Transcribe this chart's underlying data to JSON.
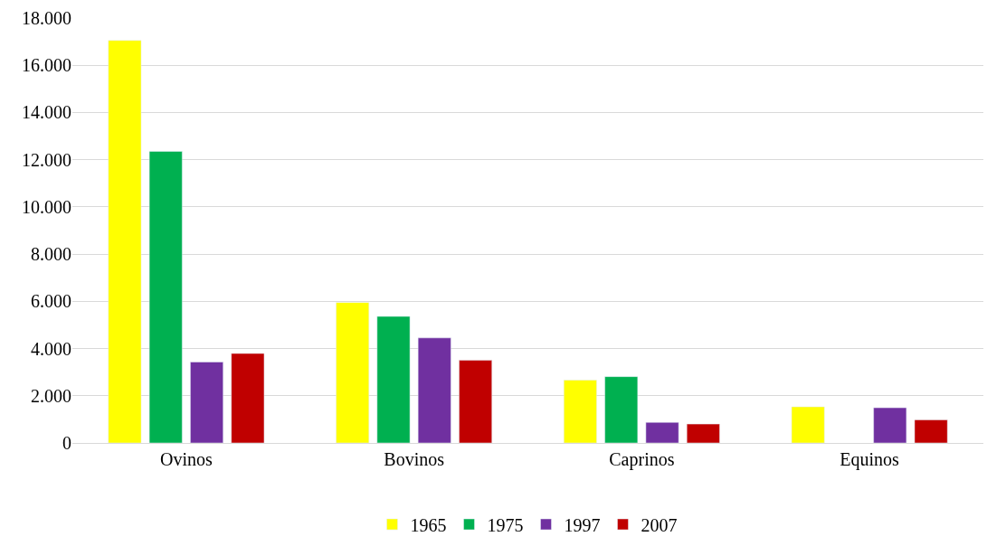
{
  "chart_data": {
    "type": "bar",
    "categories": [
      "Ovinos",
      "Bovinos",
      "Caprinos",
      "Equinos"
    ],
    "series": [
      {
        "name": "1965",
        "color": "#ffff00",
        "values": [
          17050,
          5950,
          2660,
          1530
        ]
      },
      {
        "name": "1975",
        "color": "#00b050",
        "values": [
          12350,
          5360,
          2810,
          null
        ]
      },
      {
        "name": "1997",
        "color": "#7030a0",
        "values": [
          3430,
          4450,
          870,
          1490
        ]
      },
      {
        "name": "2007",
        "color": "#c00000",
        "values": [
          3790,
          3500,
          800,
          980
        ]
      }
    ],
    "ylim": [
      0,
      18000
    ],
    "yticks": [
      {
        "value": 0,
        "label": "0"
      },
      {
        "value": 2000,
        "label": "2.000"
      },
      {
        "value": 4000,
        "label": "4.000"
      },
      {
        "value": 6000,
        "label": "6.000"
      },
      {
        "value": 8000,
        "label": "8.000"
      },
      {
        "value": 10000,
        "label": "10.000"
      },
      {
        "value": 12000,
        "label": "12.000"
      },
      {
        "value": 14000,
        "label": "14.000"
      },
      {
        "value": 16000,
        "label": "16.000"
      },
      {
        "value": 18000,
        "label": "18.000"
      }
    ],
    "grid": "y",
    "legend": "bottom"
  }
}
